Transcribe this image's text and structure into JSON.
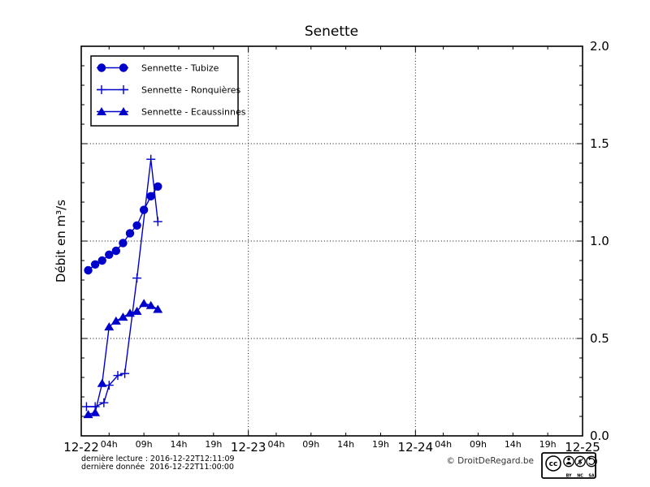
{
  "chart": {
    "title": "Senette",
    "ylabel": "Débit en m³/s",
    "line_color": "#0000cc",
    "y_tick_labels": [
      "0.0",
      "0.5",
      "1.0",
      "1.5",
      "2.0"
    ],
    "day_labels": [
      "12-22",
      "12-23",
      "12-24",
      "12-25"
    ],
    "hour_tick_labels": [
      "04h",
      "09h",
      "14h",
      "19h"
    ]
  },
  "chart_data": {
    "type": "line",
    "title": "Senette",
    "ylabel": "Débit en m³/s",
    "x_unit": "hours since 2016-12-22 00:00",
    "xlim_hours": [
      0,
      72
    ],
    "ylim": [
      0,
      2
    ],
    "y_major_step": 0.5,
    "y_minor_step": 0.1,
    "x_day_ticks_hours": [
      0,
      24,
      48,
      72
    ],
    "x_hour_tick_offsets": [
      4,
      9,
      14,
      19
    ],
    "grid": {
      "style": "dotted",
      "horizontal_at": [
        0.5,
        1.0,
        1.5
      ],
      "vertical_at_hours": [
        24,
        48
      ]
    },
    "legend_position": "upper-left",
    "series": [
      {
        "name": "Sennette - Tubize",
        "marker": "circle",
        "color": "#0000cc",
        "x_hours": [
          1,
          2,
          3,
          4,
          5,
          6,
          7,
          8,
          9,
          10,
          11
        ],
        "values": [
          0.85,
          0.88,
          0.9,
          0.93,
          0.95,
          0.99,
          1.04,
          1.08,
          1.16,
          1.23,
          1.28
        ]
      },
      {
        "name": "Sennette - Ronquières",
        "marker": "plus",
        "color": "#0000cc",
        "x_hours": [
          0.75,
          2,
          3.25,
          4,
          5.25,
          6.25,
          8,
          10,
          11
        ],
        "values": [
          0.15,
          0.15,
          0.17,
          0.26,
          0.31,
          0.32,
          0.81,
          1.42,
          1.1
        ]
      },
      {
        "name": "Sennette - Ecaussinnes",
        "marker": "triangle",
        "color": "#0000cc",
        "x_hours": [
          1,
          2,
          3,
          4,
          5,
          6,
          7,
          8,
          9,
          10,
          11
        ],
        "values": [
          0.11,
          0.12,
          0.27,
          0.56,
          0.59,
          0.61,
          0.63,
          0.64,
          0.68,
          0.67,
          0.65
        ]
      }
    ]
  },
  "footer": {
    "line1": "dernière lecture : 2016-12-22T12:11:09",
    "line2": "dernière donnée  2016-12-22T11:00:00",
    "copyright": "© DroitDeRegard.be",
    "license": {
      "name": "Creative Commons BY-NC-SA badge",
      "cc_text": "cc",
      "labels": [
        "BY",
        "NC",
        "SA"
      ]
    }
  }
}
